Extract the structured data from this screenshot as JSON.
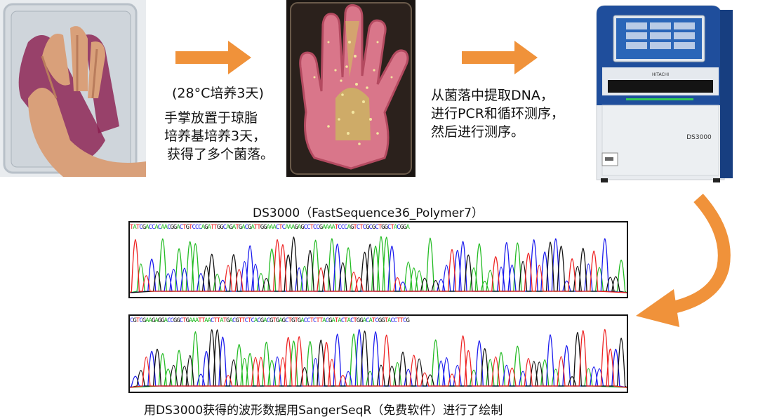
{
  "step1": {
    "line1": "(28°C培养3天)",
    "line2": "手掌放置于琼脂",
    "line3": "培养基培养3天，",
    "line4": "获得了多个菌落。"
  },
  "step2": {
    "line1": "从菌落中提取DNA，",
    "line2": "进行PCR和循环测序，",
    "line3": "然后进行测序。"
  },
  "machine": {
    "brand": "HITACHI",
    "model": "DS3000"
  },
  "chromatogram": {
    "title": "DS3000（FastSequence36_Polymer7）",
    "caption": "用DS3000获得的波形数据用SangerSeqR（免费软件）进行了绘制",
    "base_colors": {
      "A": "#22bb22",
      "C": "#1a1aee",
      "G": "#111111",
      "T": "#ee2222"
    }
  }
}
